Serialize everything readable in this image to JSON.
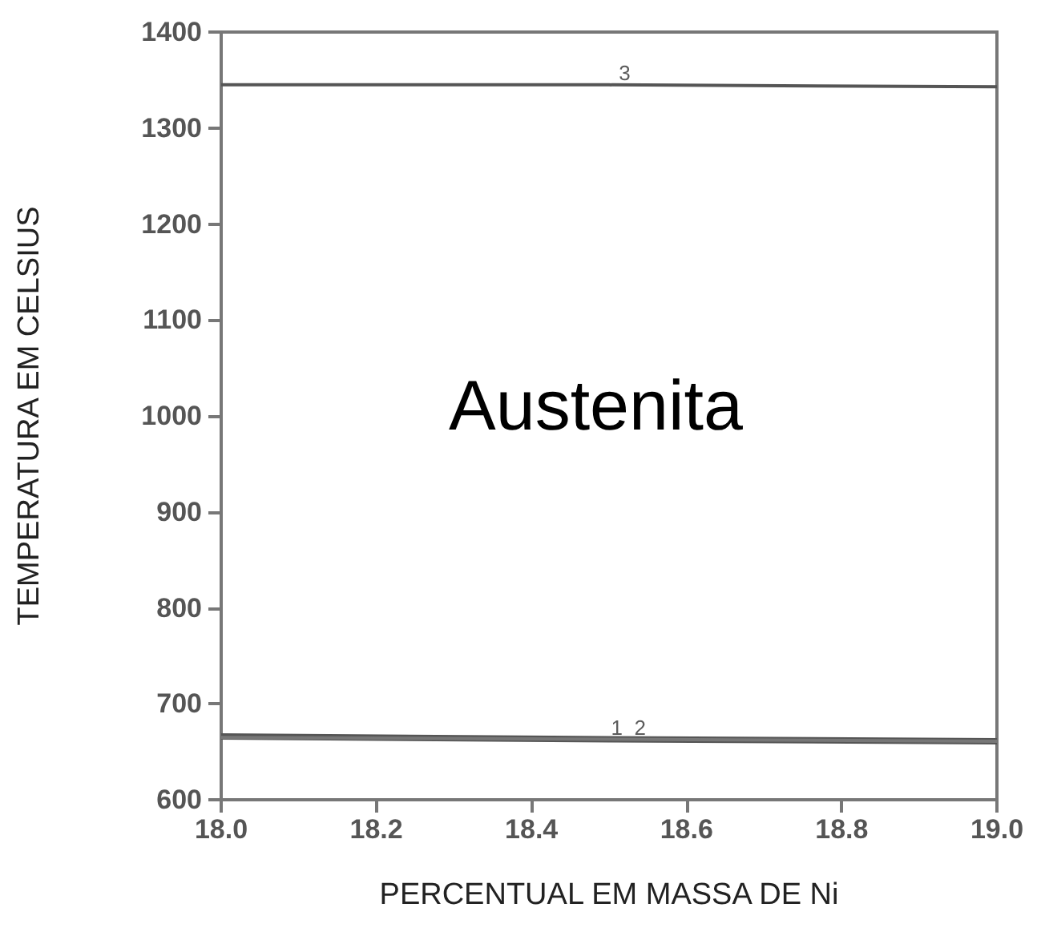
{
  "chart_data": {
    "type": "line",
    "xlabel": "PERCENTUAL EM MASSA DE Ni",
    "ylabel": "TEMPERATURA EM CELSIUS",
    "x": [
      18.0,
      18.5,
      19.0
    ],
    "series": [
      {
        "color": "#555555",
        "values": [
          666,
          663,
          661
        ]
      },
      {
        "color": "#777777",
        "values": [
          665,
          663,
          661
        ]
      },
      {
        "color": "#555555",
        "values": [
          1345,
          1345,
          1343
        ]
      }
    ],
    "xlim": [
      18.0,
      19.0
    ],
    "xticks": [
      {
        "value": 18.0,
        "label": "18.0"
      },
      {
        "value": 18.2,
        "label": "18.2"
      },
      {
        "value": 18.4,
        "label": "18.4"
      },
      {
        "value": 18.6,
        "label": "18.6"
      },
      {
        "value": 18.8,
        "label": "18.8"
      },
      {
        "value": 19.0,
        "label": "19.0"
      }
    ],
    "ylim": [
      600,
      1400
    ],
    "yticks": [
      600,
      700,
      800,
      900,
      1000,
      1100,
      1200,
      1300,
      1400
    ],
    "annotations": [
      {
        "text": "3",
        "x": 18.52,
        "y": 1345
      },
      {
        "text": "1",
        "x": 18.51,
        "y": 663
      },
      {
        "text": "2",
        "x": 18.54,
        "y": 663
      },
      "Austenita"
    ],
    "grid": false,
    "marker": "none",
    "line_style": "solid"
  }
}
